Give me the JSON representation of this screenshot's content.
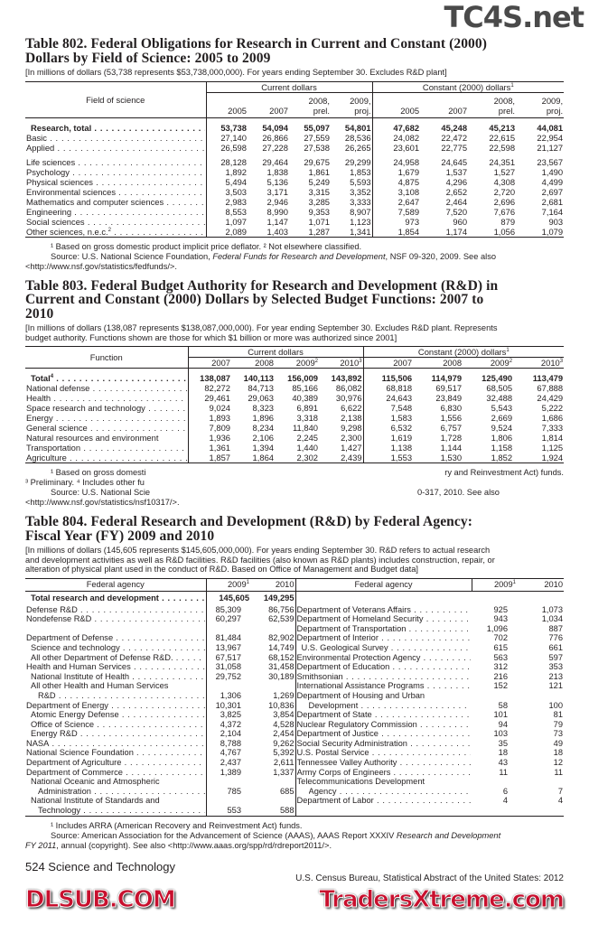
{
  "table802": {
    "title_lines": [
      "Table 802. Federal Obligations for Research in Current and Constant (2000)",
      "Dollars by Field of Science: 2005 to 2009"
    ],
    "subtitle": "[In millions of dollars (53,738 represents $53,738,000,000). For years ending September 30. Excludes R&D plant]",
    "stub": "Field of science",
    "groups": [
      {
        "label": "Current dollars",
        "sup": ""
      },
      {
        "label": "Constant (2000) dollars",
        "sup": "1"
      }
    ],
    "col_top": [
      "",
      "",
      "2008,",
      "2009,",
      "",
      "",
      "2008,",
      "2009,"
    ],
    "col_bottom": [
      "2005",
      "2007",
      "prel.",
      "proj.",
      "2005",
      "2007",
      "prel.",
      "proj."
    ],
    "row_groups": [
      [
        {
          "name": "Research, total",
          "sup": "",
          "bold": true,
          "values": [
            "53,738",
            "54,094",
            "55,097",
            "54,801",
            "47,682",
            "45,248",
            "45,213",
            "44,081"
          ]
        },
        {
          "name": "Basic",
          "sup": "",
          "values": [
            "27,140",
            "26,866",
            "27,559",
            "28,536",
            "24,082",
            "22,472",
            "22,615",
            "22,954"
          ]
        },
        {
          "name": "Applied",
          "sup": "",
          "values": [
            "26,598",
            "27,228",
            "27,538",
            "26,265",
            "23,601",
            "22,775",
            "22,598",
            "21,127"
          ]
        }
      ],
      [
        {
          "name": "Life sciences",
          "sup": "",
          "values": [
            "28,128",
            "29,464",
            "29,675",
            "29,299",
            "24,958",
            "24,645",
            "24,351",
            "23,567"
          ]
        },
        {
          "name": "Psychology",
          "sup": "",
          "values": [
            "1,892",
            "1,838",
            "1,861",
            "1,853",
            "1,679",
            "1,537",
            "1,527",
            "1,490"
          ]
        },
        {
          "name": "Physical sciences",
          "sup": "",
          "values": [
            "5,494",
            "5,136",
            "5,249",
            "5,593",
            "4,875",
            "4,296",
            "4,308",
            "4,499"
          ]
        },
        {
          "name": "Environmental sciences",
          "sup": "",
          "values": [
            "3,503",
            "3,171",
            "3,315",
            "3,352",
            "3,108",
            "2,652",
            "2,720",
            "2,697"
          ]
        },
        {
          "name": "Mathematics and computer sciences",
          "sup": "",
          "values": [
            "2,983",
            "2,946",
            "3,285",
            "3,333",
            "2,647",
            "2,464",
            "2,696",
            "2,681"
          ]
        },
        {
          "name": "Engineering",
          "sup": "",
          "values": [
            "8,553",
            "8,990",
            "9,353",
            "8,907",
            "7,589",
            "7,520",
            "7,676",
            "7,164"
          ]
        },
        {
          "name": "Social sciences",
          "sup": "",
          "values": [
            "1,097",
            "1,147",
            "1,071",
            "1,123",
            "973",
            "960",
            "879",
            "903"
          ]
        },
        {
          "name": "Other sciences, n.e.c.",
          "sup": "2",
          "values": [
            "2,089",
            "1,403",
            "1,287",
            "1,341",
            "1,854",
            "1,174",
            "1,056",
            "1,079"
          ]
        }
      ]
    ],
    "footnotes": [
      {
        "text": "¹ Based on gross domestic product implicit price deflator. ² Not elsewhere classified.",
        "indent": true
      },
      {
        "text_before": "Source: U.S. National Science Foundation, ",
        "italic": "Federal Funds for Research and Development",
        "text_after": ", NSF 09-320, 2009. See also",
        "indent": true
      },
      {
        "text": "<http://www.nsf.gov/statistics/fedfunds/>."
      }
    ]
  },
  "table803": {
    "title_lines": [
      "Table 803. Federal Budget Authority for Research and Development (R&D) in",
      "Current and Constant (2000) Dollars by Selected Budget Functions: 2007 to",
      "2010"
    ],
    "subtitle_lines": [
      "[In millions of dollars (138,087 represents $138,087,000,000). For year ending September 30. Excludes R&D plant. Represents",
      "budget authority. Functions shown are those for which $1 billion or more was authorized since 2001]"
    ],
    "stub": "Function",
    "groups": [
      {
        "label": "Current dollars",
        "sup": ""
      },
      {
        "label": "Constant (2000) dollars",
        "sup": "1"
      }
    ],
    "columns": [
      {
        "label": "2007",
        "sup": ""
      },
      {
        "label": "2008",
        "sup": ""
      },
      {
        "label": "2009",
        "sup": "2"
      },
      {
        "label": "2010",
        "sup": "3"
      },
      {
        "label": "2007",
        "sup": ""
      },
      {
        "label": "2008",
        "sup": ""
      },
      {
        "label": "2009",
        "sup": "2"
      },
      {
        "label": "2010",
        "sup": "3"
      }
    ],
    "rows": [
      {
        "name": "Total",
        "sup": "4",
        "bold": true,
        "values": [
          "138,087",
          "140,113",
          "156,009",
          "143,892",
          "115,506",
          "114,979",
          "125,490",
          "113,479"
        ]
      },
      {
        "name": "National defense",
        "sup": "",
        "values": [
          "82,272",
          "84,713",
          "85,166",
          "86,082",
          "68,818",
          "69,517",
          "68,505",
          "67,888"
        ]
      },
      {
        "name": "Health",
        "sup": "",
        "values": [
          "29,461",
          "29,063",
          "40,389",
          "30,976",
          "24,643",
          "23,849",
          "32,488",
          "24,429"
        ]
      },
      {
        "name": "Space research and technology",
        "sup": "",
        "values": [
          "9,024",
          "8,323",
          "6,891",
          "6,622",
          "7,548",
          "6,830",
          "5,543",
          "5,222"
        ]
      },
      {
        "name": "Energy",
        "sup": "",
        "values": [
          "1,893",
          "1,896",
          "3,318",
          "2,138",
          "1,583",
          "1,556",
          "2,669",
          "1,686"
        ]
      },
      {
        "name": "General science",
        "sup": "",
        "values": [
          "7,809",
          "8,234",
          "11,840",
          "9,298",
          "6,532",
          "6,757",
          "9,524",
          "7,333"
        ]
      },
      {
        "name": "Natural resources and environment",
        "sup": "",
        "noleader": true,
        "values": [
          "1,936",
          "2,106",
          "2,245",
          "2,300",
          "1,619",
          "1,728",
          "1,806",
          "1,814"
        ]
      },
      {
        "name": "Transportation",
        "sup": "",
        "values": [
          "1,361",
          "1,394",
          "1,440",
          "1,427",
          "1,138",
          "1,144",
          "1,158",
          "1,125"
        ]
      },
      {
        "name": "Agriculture",
        "sup": "",
        "values": [
          "1,857",
          "1,864",
          "2,302",
          "2,439",
          "1,553",
          "1,530",
          "1,852",
          "1,924"
        ]
      }
    ],
    "footnote_fragments": {
      "line1_left": "¹ Based on gross domesti",
      "line1_right": "ry and Reinvestment Act) funds.",
      "line2_left": "³ Preliminary. ⁴ Includes other fu",
      "line3_left": "Source: U.S. National Scie",
      "line3_right": "0-317, 2010. See also",
      "line4": "<http://www.nsf.gov/statistics/nsf10317/>."
    }
  },
  "table804": {
    "title_lines": [
      "Table 804. Federal Research and Development (R&D) by Federal Agency:",
      "Fiscal Year (FY) 2009 and 2010"
    ],
    "subtitle_lines": [
      "[In millions of dollars (145,605 represents $145,605,000,000). For years ending September 30. R&D refers to actual research",
      "and development activities as well as R&D facilities. R&D facilities (also known as R&D plants) includes construction, repair, or",
      "alteration of physical plant used in the conduct of R&D. Based on Office of Management and Budget data]"
    ],
    "header": {
      "agency": "Federal agency",
      "y2009": "2009",
      "y2009_sup": "1",
      "y2010": "2010"
    },
    "total": {
      "name": "Total research and development",
      "v2009": "145,605",
      "v2010": "149,295"
    },
    "left_rows": [
      {
        "name": "Defense R&D",
        "level": 0,
        "v2009": "85,309",
        "v2010": "86,756"
      },
      {
        "name": "Nondefense R&D",
        "level": 0,
        "v2009": "60,297",
        "v2010": "62,539"
      },
      {
        "name": "",
        "level": 0,
        "v2009": "",
        "v2010": ""
      },
      {
        "name": "Department of Defense",
        "level": 0,
        "v2009": "81,484",
        "v2010": "82,902"
      },
      {
        "name": "Science and technology",
        "level": 1,
        "v2009": "13,967",
        "v2010": "14,749"
      },
      {
        "name": "All other Department of Defense R&D.",
        "level": 1,
        "v2009": "67,517",
        "v2010": "68,152"
      },
      {
        "name": "Health and Human Services",
        "level": 0,
        "v2009": "31,058",
        "v2010": "31,458"
      },
      {
        "name": "National Institute of Health",
        "level": 1,
        "v2009": "29,752",
        "v2010": "30,189"
      },
      {
        "name": "All other Health and Human Services",
        "level": 1,
        "v2009": "",
        "v2010": ""
      },
      {
        "name": "R&D",
        "level": 2,
        "v2009": "1,306",
        "v2010": "1,269"
      },
      {
        "name": "Department of Energy",
        "level": 0,
        "v2009": "10,301",
        "v2010": "10,836"
      },
      {
        "name": "Atomic Energy Defense",
        "level": 1,
        "v2009": "3,825",
        "v2010": "3,854"
      },
      {
        "name": "Office of Science",
        "level": 1,
        "v2009": "4,372",
        "v2010": "4,528"
      },
      {
        "name": "Energy R&D",
        "level": 1,
        "v2009": "2,104",
        "v2010": "2,454"
      },
      {
        "name": "NASA",
        "level": 0,
        "v2009": "8,788",
        "v2010": "9,262"
      },
      {
        "name": "National Science Foundation",
        "level": 0,
        "v2009": "4,767",
        "v2010": "5,392"
      },
      {
        "name": "Department of Agriculture",
        "level": 0,
        "v2009": "2,437",
        "v2010": "2,611"
      },
      {
        "name": "Department of Commerce",
        "level": 0,
        "v2009": "1,389",
        "v2010": "1,337"
      },
      {
        "name": "National Oceanic and Atmospheric",
        "level": 1,
        "v2009": "",
        "v2010": ""
      },
      {
        "name": "Administration",
        "level": 2,
        "v2009": "785",
        "v2010": "685"
      },
      {
        "name": "National Institute of Standards and",
        "level": 1,
        "v2009": "",
        "v2010": ""
      },
      {
        "name": "Technology",
        "level": 2,
        "v2009": "553",
        "v2010": "588"
      }
    ],
    "right_rows": [
      {
        "name": "Department of Veterans Affairs",
        "level": 0,
        "v2009": "925",
        "v2010": "1,073"
      },
      {
        "name": "Department of Homeland Security",
        "level": 0,
        "v2009": "943",
        "v2010": "1,034"
      },
      {
        "name": "Department of Transportation",
        "level": 0,
        "v2009": "1,096",
        "v2010": "887"
      },
      {
        "name": "Department of Interior",
        "level": 0,
        "v2009": "702",
        "v2010": "776"
      },
      {
        "name": "U.S. Geological Survey",
        "level": 1,
        "v2009": "615",
        "v2010": "661"
      },
      {
        "name": "Environmental Protection Agency",
        "level": 0,
        "v2009": "563",
        "v2010": "597"
      },
      {
        "name": "Department of Education",
        "level": 0,
        "v2009": "312",
        "v2010": "353"
      },
      {
        "name": "Smithsonian",
        "level": 0,
        "v2009": "216",
        "v2010": "213"
      },
      {
        "name": "International Assistance Programs",
        "level": 0,
        "v2009": "152",
        "v2010": "121"
      },
      {
        "name": "Department of Housing and Urban",
        "level": 0,
        "v2009": "",
        "v2010": ""
      },
      {
        "name": "Development",
        "level": 2,
        "v2009": "58",
        "v2010": "100"
      },
      {
        "name": "Department of State",
        "level": 0,
        "v2009": "101",
        "v2010": "81"
      },
      {
        "name": "Nuclear Regulatory Commission",
        "level": 0,
        "v2009": "94",
        "v2010": "79"
      },
      {
        "name": "Department of Justice",
        "level": 0,
        "v2009": "103",
        "v2010": "73"
      },
      {
        "name": "Social Security Administration",
        "level": 0,
        "v2009": "35",
        "v2010": "49"
      },
      {
        "name": "U.S. Postal Service",
        "level": 0,
        "v2009": "18",
        "v2010": "18"
      },
      {
        "name": "Tennessee Valley Authority",
        "level": 0,
        "v2009": "43",
        "v2010": "12"
      },
      {
        "name": "Army Corps of Engineers",
        "level": 0,
        "v2009": "11",
        "v2010": "11"
      },
      {
        "name": "Telecommunications Development",
        "level": 0,
        "v2009": "",
        "v2010": ""
      },
      {
        "name": "Agency",
        "level": 2,
        "v2009": "6",
        "v2010": "7"
      },
      {
        "name": "Department of Labor",
        "level": 0,
        "v2009": "4",
        "v2010": "4"
      },
      {
        "name": "",
        "level": 0,
        "v2009": "",
        "v2010": ""
      }
    ],
    "footnotes": {
      "note1": "¹ Includes ARRA (American Recovery and Reinvestment Act) funds.",
      "source_before": "Source: American Association for the Advancement of Science (AAAS), AAAS Report XXXIV ",
      "source_italic_1": "Research and Development",
      "source_italic_2": "FY 2011",
      "source_after": ", annual (copyright). See also <http://www.aaas.org/spp/rd/rdreport2011/>."
    }
  },
  "footer": {
    "page": "524  Science and Technology",
    "source": "U.S. Census Bureau, Statistical Abstract of the United States: 2012"
  },
  "watermarks": {
    "top": "TC4S.net",
    "middle": "DLSUB.COM",
    "bottom": "TradersXtreme.com",
    "red": "#c8102e",
    "gray": "#3a3a3a"
  }
}
